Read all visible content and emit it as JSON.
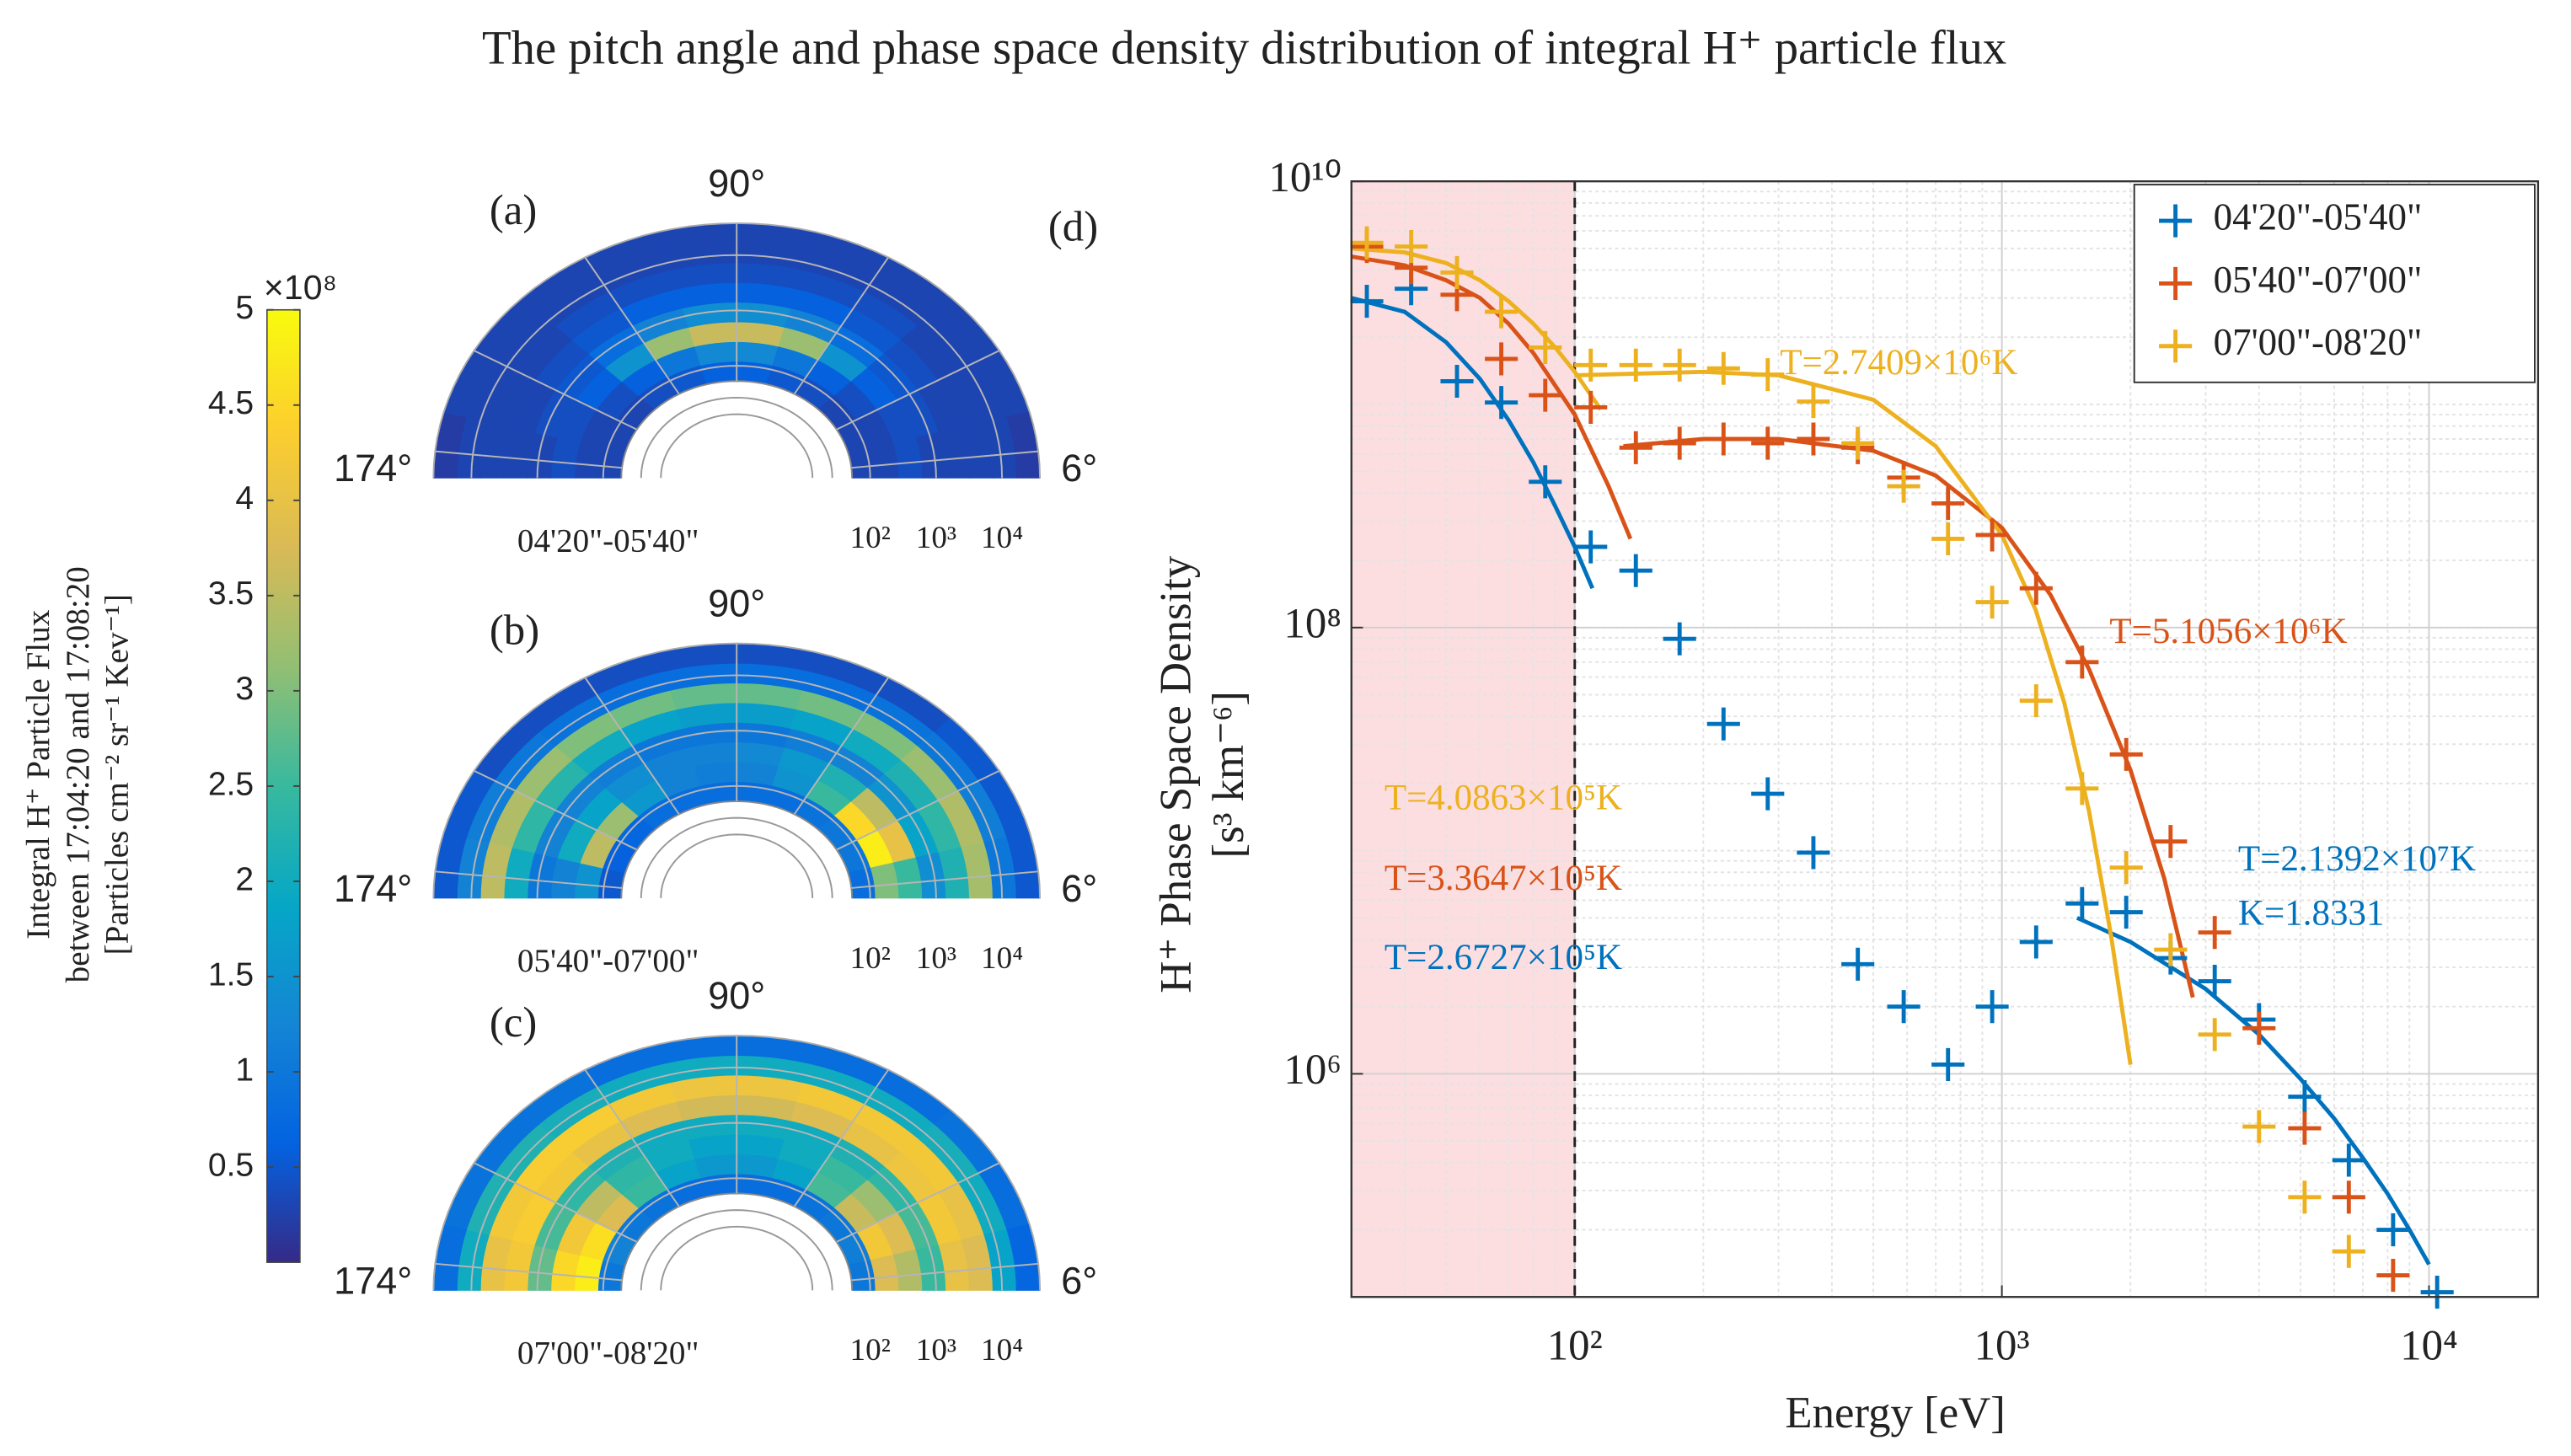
{
  "title": "The pitch angle and phase space density distribution  of integral H⁺ particle flux",
  "colorbar": {
    "label": [
      "Integral H⁺ Particle Flux",
      "between 17:04:20  and 17:08:20",
      "[Particles cm⁻² sr⁻¹ Kev⁻¹]"
    ],
    "multiplier": "×10⁸",
    "ylim": [
      0,
      5
    ],
    "yticks": [
      0.5,
      1,
      1.5,
      2,
      2.5,
      3,
      3.5,
      4,
      4.5,
      5
    ],
    "colormap": "parula"
  },
  "chart_data": [
    {
      "type": "polar-heatmap",
      "panel": "(a)",
      "subtitle": "04'20\"-05'40\"",
      "thetalim": [
        180,
        0
      ],
      "thetaticks": [
        {
          "value": 174,
          "label": "174°"
        },
        {
          "value": 90,
          "label": "90°"
        },
        {
          "value": 6,
          "label": "6°"
        }
      ],
      "rscale": "log",
      "rlim": [
        53,
        37600
      ],
      "rticks": [
        {
          "value": 100,
          "label": "10²"
        },
        {
          "value": 1000,
          "label": "10³"
        },
        {
          "value": 10000,
          "label": "10⁴"
        }
      ],
      "values": [
        [
          0.3,
          0.3,
          0.3,
          0.4,
          0.5,
          0.6,
          0.6,
          0.5,
          0.4,
          0.3,
          0.3,
          0.3
        ],
        [
          0.3,
          0.3,
          0.4,
          0.6,
          1.0,
          1.3,
          1.3,
          1.0,
          0.6,
          0.4,
          0.3,
          0.3
        ],
        [
          0.4,
          0.4,
          0.6,
          1.5,
          3.2,
          3.6,
          3.6,
          3.2,
          1.5,
          0.6,
          0.4,
          0.4
        ],
        [
          0.3,
          0.4,
          0.5,
          0.8,
          1.2,
          1.4,
          1.4,
          1.2,
          0.8,
          0.5,
          0.4,
          0.3
        ],
        [
          0.3,
          0.3,
          0.4,
          0.5,
          0.6,
          0.6,
          0.6,
          0.6,
          0.5,
          0.4,
          0.3,
          0.3
        ],
        [
          0.3,
          0.3,
          0.3,
          0.4,
          0.4,
          0.4,
          0.4,
          0.4,
          0.4,
          0.3,
          0.3,
          0.3
        ],
        [
          0.3,
          0.3,
          0.3,
          0.3,
          0.3,
          0.3,
          0.3,
          0.3,
          0.3,
          0.3,
          0.3,
          0.3
        ],
        [
          0.2,
          0.3,
          0.3,
          0.3,
          0.3,
          0.3,
          0.3,
          0.3,
          0.3,
          0.3,
          0.3,
          0.2
        ]
      ]
    },
    {
      "type": "polar-heatmap",
      "panel": "(b)",
      "subtitle": "05'40\"-07'00\"",
      "thetalim": [
        180,
        0
      ],
      "thetaticks": [
        {
          "value": 174,
          "label": "174°"
        },
        {
          "value": 90,
          "label": "90°"
        },
        {
          "value": 6,
          "label": "6°"
        }
      ],
      "rscale": "log",
      "rlim": [
        53,
        37600
      ],
      "rticks": [
        {
          "value": 100,
          "label": "10²"
        },
        {
          "value": 1000,
          "label": "10³"
        },
        {
          "value": 10000,
          "label": "10⁴"
        }
      ],
      "values": [
        [
          0.5,
          0.6,
          0.7,
          0.8,
          0.8,
          0.8,
          0.8,
          0.8,
          0.9,
          1.0,
          1.0,
          0.8
        ],
        [
          1.5,
          3.5,
          3.2,
          1.6,
          1.2,
          1.1,
          1.2,
          1.5,
          2.5,
          4.5,
          4.8,
          3.0
        ],
        [
          1.2,
          2.0,
          1.8,
          1.4,
          1.2,
          1.2,
          1.3,
          1.6,
          2.2,
          3.5,
          4.0,
          2.5
        ],
        [
          1.0,
          1.2,
          1.2,
          1.1,
          1.0,
          1.0,
          1.0,
          1.1,
          1.2,
          1.5,
          1.8,
          1.4
        ],
        [
          2.0,
          2.4,
          2.3,
          2.0,
          1.8,
          1.7,
          1.7,
          1.8,
          2.0,
          2.2,
          2.4,
          2.2
        ],
        [
          3.5,
          3.4,
          3.2,
          3.0,
          2.9,
          2.8,
          2.8,
          2.9,
          3.0,
          3.2,
          3.4,
          3.3
        ],
        [
          1.2,
          1.1,
          1.0,
          0.9,
          0.8,
          0.8,
          0.8,
          0.8,
          0.9,
          1.0,
          1.1,
          1.0
        ],
        [
          0.5,
          0.5,
          0.4,
          0.4,
          0.4,
          0.4,
          0.4,
          0.4,
          0.4,
          0.5,
          0.5,
          0.5
        ]
      ]
    },
    {
      "type": "polar-heatmap",
      "panel": "(c)",
      "subtitle": "07'00\"-08'20\"",
      "thetalim": [
        180,
        0
      ],
      "thetaticks": [
        {
          "value": 174,
          "label": "174°"
        },
        {
          "value": 90,
          "label": "90°"
        },
        {
          "value": 6,
          "label": "6°"
        }
      ],
      "rscale": "log",
      "rlim": [
        53,
        37600
      ],
      "rticks": [
        {
          "value": 100,
          "label": "10²"
        },
        {
          "value": 1000,
          "label": "10³"
        },
        {
          "value": 10000,
          "label": "10⁴"
        }
      ],
      "values": [
        [
          1.0,
          1.2,
          1.0,
          0.9,
          0.8,
          0.8,
          0.8,
          0.8,
          0.9,
          1.0,
          1.1,
          1.0
        ],
        [
          4.8,
          4.6,
          3.8,
          2.5,
          1.8,
          1.6,
          1.6,
          1.8,
          2.6,
          3.6,
          4.2,
          3.8
        ],
        [
          4.5,
          4.2,
          3.5,
          2.4,
          2.0,
          1.8,
          1.8,
          2.0,
          2.5,
          3.2,
          3.8,
          3.4
        ],
        [
          2.8,
          2.6,
          2.4,
          2.2,
          2.0,
          2.0,
          2.0,
          2.0,
          2.2,
          2.4,
          2.6,
          2.5
        ],
        [
          4.2,
          4.3,
          4.2,
          4.0,
          3.8,
          3.7,
          3.7,
          3.8,
          4.0,
          4.1,
          4.2,
          4.0
        ],
        [
          4.0,
          4.2,
          4.3,
          4.3,
          4.2,
          4.1,
          4.1,
          4.2,
          4.2,
          4.2,
          4.0,
          3.8
        ],
        [
          2.0,
          2.2,
          2.2,
          2.1,
          2.0,
          2.0,
          2.0,
          2.0,
          2.0,
          2.1,
          2.0,
          1.8
        ],
        [
          0.8,
          0.9,
          0.9,
          0.9,
          0.8,
          0.8,
          0.8,
          0.8,
          0.8,
          0.9,
          0.8,
          0.7
        ]
      ]
    },
    {
      "type": "scatter",
      "panel": "(d)",
      "xlabel": "Energy [eV]",
      "ylabel": [
        "H⁺ Phase Space Density",
        "[s³ km⁻⁶]"
      ],
      "xscale": "log",
      "yscale": "log",
      "xlim": [
        30,
        18000
      ],
      "ylim": [
        100000,
        10000000000
      ],
      "xticks": [
        {
          "value": 100,
          "label": "10²"
        },
        {
          "value": 1000,
          "label": "10³"
        },
        {
          "value": 10000,
          "label": "10⁴"
        }
      ],
      "yticks": [
        {
          "value": 1000000,
          "label": "10⁶"
        },
        {
          "value": 100000000,
          "label": "10⁸"
        },
        {
          "value": 10000000000,
          "label": "10¹⁰"
        }
      ],
      "grid": true,
      "legend": "upper right",
      "highlight_x": 100,
      "x": [
        32.6,
        41.4,
        53,
        67.3,
        85.3,
        109,
        139,
        176,
        223,
        283,
        362,
        460,
        589,
        748,
        949,
        1203,
        1541,
        1955,
        2483,
        3150,
        4000,
        5115,
        6490,
        8240,
        10450
      ],
      "series": [
        {
          "name": "04'20\"-05'40\"",
          "color": "#0072BD",
          "values": [
            2900000000.0,
            3300000000.0,
            1270000000.0,
            1020000000.0,
            450000000.0,
            230000000.0,
            180000000.0,
            89000000.0,
            37000000.0,
            18000000.0,
            9800000.0,
            3100000.0,
            2000000.0,
            1100000.0,
            2000000.0,
            3900000.0,
            5800000.0,
            5300000.0,
            3300000.0,
            2600000.0,
            1750000.0,
            790000.0,
            410000.0,
            200000.0,
            105000.0
          ]
        },
        {
          "name": "05'40\"-07'00\"",
          "color": "#D95319",
          "values": [
            5100000000.0,
            4100000000.0,
            3100000000.0,
            1600000000.0,
            1100000000.0,
            970000000.0,
            640000000.0,
            670000000.0,
            700000000.0,
            670000000.0,
            700000000.0,
            640000000.0,
            470000000.0,
            360000000.0,
            260000000.0,
            150000000.0,
            70000000.0,
            27000000.0,
            11000000.0,
            4300000.0,
            1600000.0,
            570000.0,
            280000.0,
            125000.0,
            null
          ]
        },
        {
          "name": "07'00\"-08'20\"",
          "color": "#EDB120",
          "values": [
            5300000000.0,
            5100000000.0,
            3900000000.0,
            2600000000.0,
            1800000000.0,
            1500000000.0,
            1500000000.0,
            1500000000.0,
            1450000000.0,
            1360000000.0,
            1030000000.0,
            670000000.0,
            430000000.0,
            250000000.0,
            130000000.0,
            47000000.0,
            19000000.0,
            8400000.0,
            3600000.0,
            1500000.0,
            580000.0,
            280000.0,
            160000.0,
            null,
            null
          ]
        }
      ],
      "fits": [
        {
          "color": "#0072BD",
          "labels": [
            "T=2.6727×10⁵K"
          ],
          "x": [
            30,
            40,
            50,
            60,
            70,
            80,
            90,
            100,
            110
          ],
          "values": [
            3000000000.0,
            2600000000.0,
            1900000000.0,
            1300000000.0,
            850000000.0,
            550000000.0,
            350000000.0,
            230000000.0,
            150000000.0
          ]
        },
        {
          "color": "#0072BD",
          "labels": [
            "T=2.1392×10⁷K",
            "K=1.8331"
          ],
          "x": [
            1500,
            2000,
            3000,
            4000,
            5000,
            6000,
            7000,
            8000,
            9000,
            10000
          ],
          "values": [
            5000000.0,
            3900000.0,
            2400000.0,
            1500000.0,
            950000.0,
            630000.0,
            420000.0,
            290000.0,
            200000.0,
            140000.0
          ]
        },
        {
          "color": "#D95319",
          "labels": [
            "T=3.3647×10⁵K"
          ],
          "x": [
            30,
            40,
            50,
            60,
            70,
            80,
            100,
            120,
            135
          ],
          "values": [
            4600000000.0,
            4200000000.0,
            3600000000.0,
            3000000000.0,
            2300000000.0,
            1700000000.0,
            900000000.0,
            430000000.0,
            250000000.0
          ]
        },
        {
          "color": "#D95319",
          "labels": [
            "T=5.1056×10⁶K"
          ],
          "x": [
            130,
            200,
            300,
            500,
            700,
            1000,
            1300,
            1600,
            2000,
            2400,
            2800
          ],
          "values": [
            650000000.0,
            700000000.0,
            700000000.0,
            620000000.0,
            480000000.0,
            280000000.0,
            140000000.0,
            65000000.0,
            23000000.0,
            7500000.0,
            2200000.0
          ]
        },
        {
          "color": "#EDB120",
          "labels": [
            "T=4.0863×10⁵K"
          ],
          "x": [
            30,
            40,
            50,
            60,
            70,
            80,
            90,
            100,
            115
          ],
          "values": [
            5000000000.0,
            4800000000.0,
            4300000000.0,
            3600000000.0,
            2900000000.0,
            2300000000.0,
            1800000000.0,
            1400000000.0,
            950000000.0
          ]
        },
        {
          "color": "#EDB120",
          "labels": [
            "T=2.7409×10⁶K"
          ],
          "x": [
            100,
            200,
            300,
            500,
            700,
            1000,
            1200,
            1400,
            1600,
            1800,
            2000
          ],
          "values": [
            1350000000.0,
            1400000000.0,
            1350000000.0,
            1050000000.0,
            650000000.0,
            260000000.0,
            120000000.0,
            46000000.0,
            15000000.0,
            4200000.0,
            1100000.0
          ]
        }
      ]
    }
  ]
}
